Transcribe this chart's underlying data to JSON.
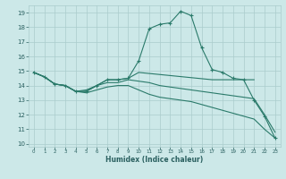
{
  "xlabel": "Humidex (Indice chaleur)",
  "ylabel": "",
  "xlim": [
    -0.5,
    23.5
  ],
  "ylim": [
    9.8,
    19.5
  ],
  "yticks": [
    10,
    11,
    12,
    13,
    14,
    15,
    16,
    17,
    18,
    19
  ],
  "xticks": [
    0,
    1,
    2,
    3,
    4,
    5,
    6,
    7,
    8,
    9,
    10,
    11,
    12,
    13,
    14,
    15,
    16,
    17,
    18,
    19,
    20,
    21,
    22,
    23
  ],
  "bg_color": "#cce8e8",
  "grid_color": "#aacccc",
  "line_color": "#2a7a6a",
  "lines": [
    {
      "x": [
        0,
        1,
        2,
        3,
        4,
        5,
        6,
        7,
        8,
        9,
        10,
        11,
        12,
        13,
        14,
        15,
        16,
        17,
        18,
        19,
        20,
        21,
        22,
        23
      ],
      "y": [
        14.9,
        14.6,
        14.1,
        14.0,
        13.6,
        13.6,
        14.0,
        14.4,
        14.4,
        14.5,
        15.7,
        17.9,
        18.2,
        18.3,
        19.1,
        18.8,
        16.6,
        15.1,
        14.9,
        14.5,
        14.4,
        13.0,
        11.9,
        10.4
      ],
      "marker": "+"
    },
    {
      "x": [
        0,
        1,
        2,
        3,
        4,
        5,
        6,
        7,
        8,
        9,
        10,
        17,
        21
      ],
      "y": [
        14.9,
        14.6,
        14.1,
        14.0,
        13.6,
        13.6,
        14.0,
        14.4,
        14.4,
        14.5,
        14.9,
        14.4,
        14.4
      ],
      "marker": null
    },
    {
      "x": [
        0,
        1,
        2,
        3,
        4,
        5,
        6,
        7,
        8,
        9,
        10,
        11,
        12,
        13,
        14,
        15,
        16,
        17,
        18,
        19,
        20,
        21,
        22,
        23
      ],
      "y": [
        14.9,
        14.6,
        14.1,
        14.0,
        13.6,
        13.7,
        14.0,
        14.2,
        14.2,
        14.4,
        14.3,
        14.2,
        14.0,
        13.9,
        13.8,
        13.7,
        13.6,
        13.5,
        13.4,
        13.3,
        13.2,
        13.1,
        12.0,
        10.8
      ],
      "marker": null
    },
    {
      "x": [
        0,
        1,
        2,
        3,
        4,
        5,
        6,
        7,
        8,
        9,
        10,
        11,
        12,
        13,
        14,
        15,
        16,
        17,
        18,
        19,
        20,
        21,
        22,
        23
      ],
      "y": [
        14.9,
        14.6,
        14.1,
        14.0,
        13.6,
        13.5,
        13.7,
        13.9,
        14.0,
        14.0,
        13.7,
        13.4,
        13.2,
        13.1,
        13.0,
        12.9,
        12.7,
        12.5,
        12.3,
        12.1,
        11.9,
        11.7,
        11.0,
        10.4
      ],
      "marker": null
    }
  ]
}
